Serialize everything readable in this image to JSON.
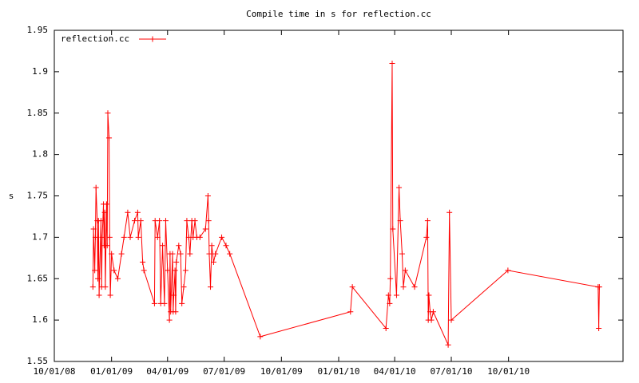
{
  "chart_data": {
    "type": "line",
    "title": "Compile time in s for reflection.cc",
    "y_label": "s",
    "legend": "top left",
    "series": [
      {
        "name": "reflection.cc",
        "color": "#ff0000",
        "x": [
          "2008-12-02",
          "2008-12-03",
          "2008-12-05",
          "2008-12-06",
          "2008-12-07",
          "2008-12-09",
          "2008-12-10",
          "2008-12-11",
          "2008-12-12",
          "2008-12-15",
          "2008-12-16",
          "2008-12-17",
          "2008-12-19",
          "2008-12-20",
          "2008-12-21",
          "2008-12-22",
          "2008-12-24",
          "2008-12-25",
          "2008-12-26",
          "2008-12-28",
          "2008-12-29",
          "2008-12-30",
          "2009-01-01",
          "2009-01-05",
          "2009-01-11",
          "2009-01-17",
          "2009-01-21",
          "2009-01-27",
          "2009-01-31",
          "2009-02-07",
          "2009-02-12",
          "2009-02-13",
          "2009-02-17",
          "2009-02-20",
          "2009-02-22",
          "2009-03-11",
          "2009-03-12",
          "2009-03-16",
          "2009-03-19",
          "2009-03-21",
          "2009-03-24",
          "2009-03-27",
          "2009-03-29",
          "2009-04-01",
          "2009-04-04",
          "2009-04-05",
          "2009-04-06",
          "2009-04-09",
          "2009-04-10",
          "2009-04-11",
          "2009-04-13",
          "2009-04-14",
          "2009-04-15",
          "2009-04-19",
          "2009-04-22",
          "2009-04-24",
          "2009-04-27",
          "2009-04-30",
          "2009-05-02",
          "2009-05-05",
          "2009-05-07",
          "2009-05-10",
          "2009-05-12",
          "2009-05-15",
          "2009-05-18",
          "2009-05-23",
          "2009-06-01",
          "2009-06-05",
          "2009-06-06",
          "2009-06-07",
          "2009-06-09",
          "2009-06-11",
          "2009-06-14",
          "2009-06-17",
          "2009-06-27",
          "2009-07-04",
          "2009-07-10",
          "2009-08-28",
          "2010-01-20",
          "2010-01-23",
          "2010-03-18",
          "2010-03-22",
          "2010-03-24",
          "2010-03-25",
          "2010-03-28",
          "2010-03-29",
          "2010-04-04",
          "2010-04-08",
          "2010-04-10",
          "2010-04-13",
          "2010-04-15",
          "2010-04-18",
          "2010-05-03",
          "2010-05-22",
          "2010-05-24",
          "2010-05-25",
          "2010-05-26",
          "2010-05-28",
          "2010-05-30",
          "2010-06-02",
          "2010-06-26",
          "2010-06-28",
          "2010-07-01",
          "2010-09-30",
          "2011-02-22",
          "2011-02-23",
          "2011-02-24"
        ],
        "values": [
          1.64,
          1.71,
          1.66,
          1.7,
          1.76,
          1.72,
          1.65,
          1.72,
          1.63,
          1.72,
          1.64,
          1.7,
          1.74,
          1.69,
          1.73,
          1.64,
          1.74,
          1.69,
          1.85,
          1.82,
          1.7,
          1.63,
          1.68,
          1.66,
          1.65,
          1.68,
          1.7,
          1.73,
          1.7,
          1.72,
          1.73,
          1.7,
          1.72,
          1.67,
          1.66,
          1.62,
          1.72,
          1.7,
          1.72,
          1.62,
          1.69,
          1.62,
          1.72,
          1.66,
          1.6,
          1.68,
          1.61,
          1.68,
          1.61,
          1.63,
          1.66,
          1.61,
          1.67,
          1.69,
          1.68,
          1.62,
          1.64,
          1.66,
          1.72,
          1.7,
          1.68,
          1.72,
          1.7,
          1.72,
          1.7,
          1.7,
          1.71,
          1.75,
          1.72,
          1.68,
          1.64,
          1.69,
          1.67,
          1.68,
          1.7,
          1.69,
          1.68,
          1.58,
          1.61,
          1.64,
          1.59,
          1.63,
          1.62,
          1.65,
          1.91,
          1.71,
          1.63,
          1.76,
          1.72,
          1.68,
          1.64,
          1.66,
          1.64,
          1.7,
          1.72,
          1.6,
          1.63,
          1.61,
          1.6,
          1.61,
          1.57,
          1.73,
          1.6,
          1.66,
          1.64,
          1.59,
          1.64
        ]
      }
    ],
    "xlim": [
      "2008-10-01",
      "2011-04-03"
    ],
    "xticks": [
      {
        "value": "2008-10-01",
        "label": "10/01/08"
      },
      {
        "value": "2009-01-01",
        "label": "01/01/09"
      },
      {
        "value": "2009-04-01",
        "label": "04/01/09"
      },
      {
        "value": "2009-07-01",
        "label": "07/01/09"
      },
      {
        "value": "2009-10-01",
        "label": "10/01/09"
      },
      {
        "value": "2010-01-01",
        "label": "01/01/10"
      },
      {
        "value": "2010-04-01",
        "label": "04/01/10"
      },
      {
        "value": "2010-07-01",
        "label": "07/01/10"
      },
      {
        "value": "2010-10-01",
        "label": "10/01/10"
      }
    ],
    "ylim": [
      1.55,
      1.95
    ],
    "yticks": [
      1.55,
      1.6,
      1.65,
      1.7,
      1.75,
      1.8,
      1.85,
      1.9,
      1.95
    ]
  }
}
